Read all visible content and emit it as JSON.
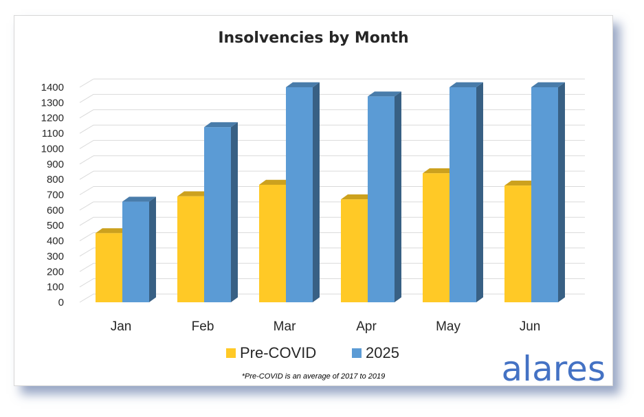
{
  "chart_data": {
    "type": "bar",
    "title": "Insolvencies by Month",
    "categories": [
      "Jan",
      "Feb",
      "Mar",
      "Apr",
      "May",
      "Jun"
    ],
    "series": [
      {
        "name": "Pre-COVID",
        "values": [
          450,
          690,
          765,
          670,
          840,
          760
        ],
        "color": "#FFC926"
      },
      {
        "name": "2025",
        "values": [
          655,
          1140,
          1400,
          1340,
          1400,
          1400
        ],
        "color": "#5B9BD5"
      }
    ],
    "ylim": [
      0,
      1400
    ],
    "yticks": [
      0,
      100,
      200,
      300,
      400,
      500,
      600,
      700,
      800,
      900,
      1000,
      1100,
      1200,
      1300,
      1400
    ],
    "grid": true,
    "style": "3d-clustered-column",
    "legend_position": "bottom",
    "footnote": "*Pre-COVID is an average of 2017 to 2019"
  },
  "brand": {
    "name": "alares",
    "color": "#4472C4"
  }
}
